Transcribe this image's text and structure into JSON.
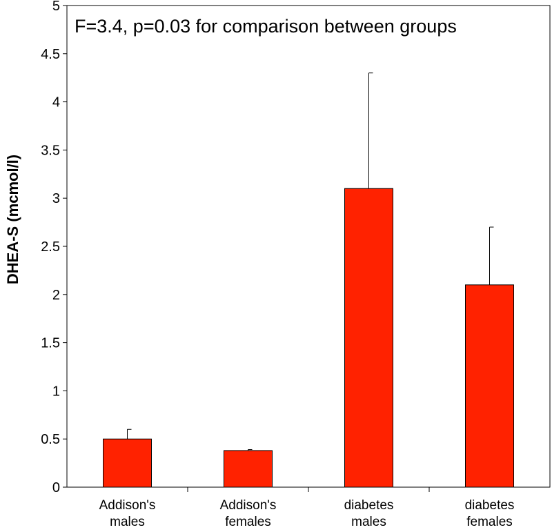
{
  "chart_data": {
    "type": "bar",
    "title": "",
    "annotation": "F=3.4, p=0.03 for comparison between groups",
    "xlabel": "",
    "ylabel": "DHEA-S (mcmol/l)",
    "ylim": [
      0,
      5
    ],
    "yticks": [
      "0",
      "0.5",
      "1",
      "1.5",
      "2",
      "2.5",
      "3",
      "3.5",
      "4",
      "4.5",
      "5"
    ],
    "categories": [
      [
        "Addison's",
        "males"
      ],
      [
        "Addison's",
        "females"
      ],
      [
        "diabetes",
        "males"
      ],
      [
        "diabetes",
        "females"
      ]
    ],
    "values": [
      0.5,
      0.38,
      3.1,
      2.1
    ],
    "error_upper": [
      0.6,
      0.39,
      4.3,
      2.7
    ],
    "bar_color": "#ff2200",
    "grid": false,
    "legend": "none"
  }
}
